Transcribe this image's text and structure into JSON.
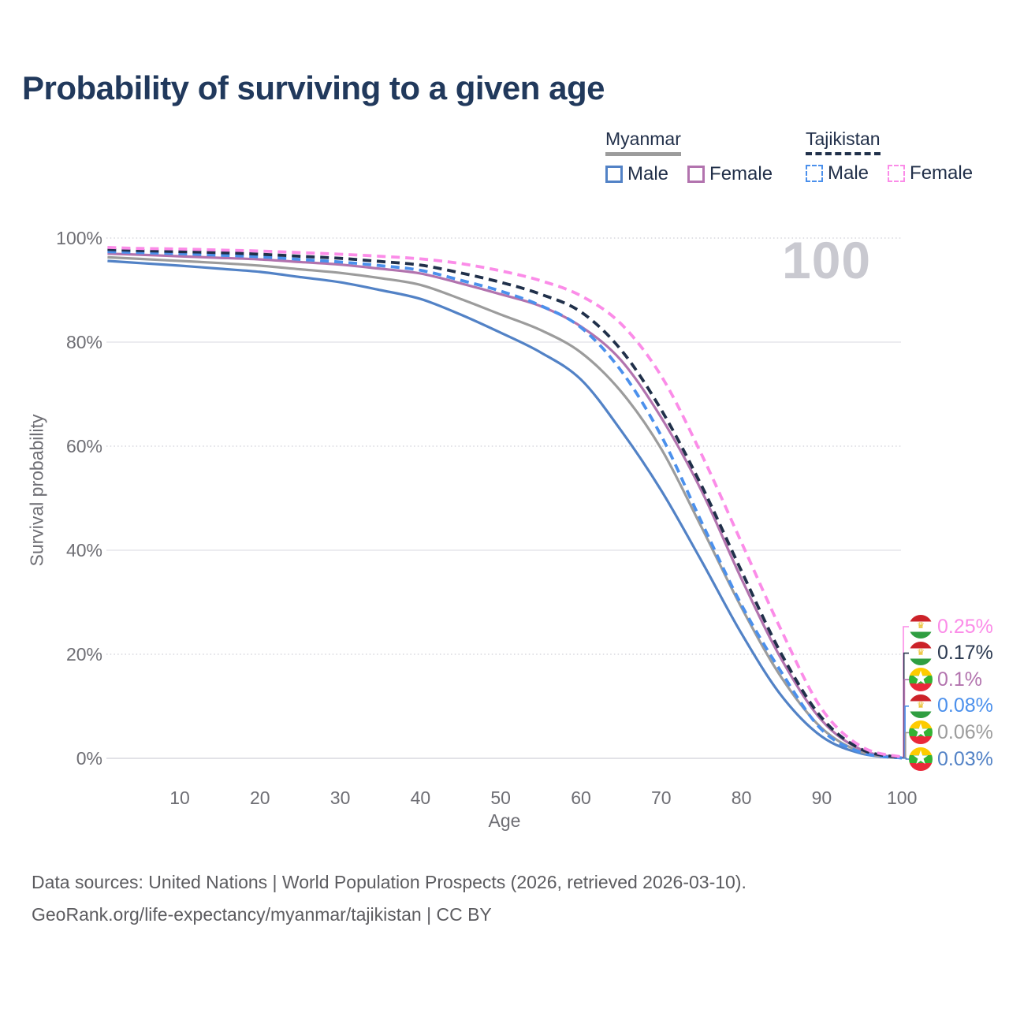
{
  "page": {
    "title": "Probability of surviving to a given age",
    "watermark_age": "100",
    "footer_line1": "Data sources: United Nations | World Population Prospects (2026, retrieved 2026-03-10).",
    "footer_line2": "GeoRank.org/life-expectancy/myanmar/tajikistan | CC BY"
  },
  "colors": {
    "title_text": "#21395c",
    "legend_text": "#22304a",
    "axis_text": "#6e6e74",
    "footer_text": "#5c5c60",
    "watermark": "#c9c9d0",
    "grid_solid": "#ececf0",
    "grid_dotted": "#d7d7de",
    "grid_baseline": "#e2e2e7",
    "myanmar_male": "#5282c6",
    "myanmar_female": "#b273ae",
    "myanmar_total": "#9c9c9c",
    "tajikistan_male": "#4b90ec",
    "tajikistan_female": "#fb8ce8",
    "tajikistan_total": "#20304a"
  },
  "legend": {
    "groups": [
      {
        "header": "Myanmar",
        "underline_style": "solid",
        "items": [
          {
            "label": "Male",
            "color": "#5282c6",
            "dashed": false
          },
          {
            "label": "Female",
            "color": "#b273ae",
            "dashed": false
          }
        ]
      },
      {
        "header": "Tajikistan",
        "underline_style": "dashed",
        "items": [
          {
            "label": "Male",
            "color": "#4b90ec",
            "dashed": true
          },
          {
            "label": "Female",
            "color": "#fb8ce8",
            "dashed": true
          }
        ]
      }
    ]
  },
  "chart_data": {
    "type": "line",
    "title": "Probability of surviving to a given age",
    "xlabel": "Age",
    "ylabel": "Survival probability",
    "xlim": [
      1,
      100
    ],
    "ylim": [
      0,
      100
    ],
    "x_ticks": [
      "10",
      "20",
      "30",
      "40",
      "50",
      "60",
      "70",
      "80",
      "90",
      "100"
    ],
    "y_tick_labels": [
      "0%",
      "20%",
      "40%",
      "60%",
      "80%",
      "100%"
    ],
    "y_tick_values": [
      0,
      20,
      40,
      60,
      80,
      100
    ],
    "grid": "horizontal only; solid lines at 0/40/80, dotted minor lines at 20/60/100",
    "legend_position": "top-right",
    "series": [
      {
        "name": "Myanmar Male",
        "country": "Myanmar",
        "style": "solid",
        "color": "#5282c6",
        "end_value_pct": 0.03,
        "points": [
          [
            1,
            95.6
          ],
          [
            5,
            95.2
          ],
          [
            10,
            94.7
          ],
          [
            15,
            94.1
          ],
          [
            20,
            93.5
          ],
          [
            25,
            92.5
          ],
          [
            30,
            91.5
          ],
          [
            35,
            90.0
          ],
          [
            40,
            88.3
          ],
          [
            45,
            85.3
          ],
          [
            50,
            81.8
          ],
          [
            55,
            78.0
          ],
          [
            60,
            72.8
          ],
          [
            65,
            63.0
          ],
          [
            70,
            51.5
          ],
          [
            75,
            38.0
          ],
          [
            80,
            24.0
          ],
          [
            85,
            12.0
          ],
          [
            90,
            4.2
          ],
          [
            95,
            0.9
          ],
          [
            100,
            0.03
          ]
        ]
      },
      {
        "name": "Myanmar Total",
        "country": "Myanmar",
        "style": "solid",
        "color": "#9c9c9c",
        "end_value_pct": 0.06,
        "points": [
          [
            1,
            96.3
          ],
          [
            5,
            96.0
          ],
          [
            10,
            95.6
          ],
          [
            15,
            95.2
          ],
          [
            20,
            94.7
          ],
          [
            25,
            94.0
          ],
          [
            30,
            93.3
          ],
          [
            35,
            92.3
          ],
          [
            40,
            91.0
          ],
          [
            45,
            88.3
          ],
          [
            50,
            85.3
          ],
          [
            55,
            82.3
          ],
          [
            60,
            78.0
          ],
          [
            65,
            70.5
          ],
          [
            70,
            59.5
          ],
          [
            75,
            44.5
          ],
          [
            80,
            29.0
          ],
          [
            85,
            15.5
          ],
          [
            90,
            5.8
          ],
          [
            95,
            1.2
          ],
          [
            100,
            0.06
          ]
        ]
      },
      {
        "name": "Myanmar Female",
        "country": "Myanmar",
        "style": "solid",
        "color": "#b273ae",
        "end_value_pct": 0.1,
        "points": [
          [
            1,
            97.0
          ],
          [
            5,
            96.8
          ],
          [
            10,
            96.5
          ],
          [
            15,
            96.2
          ],
          [
            20,
            95.9
          ],
          [
            25,
            95.4
          ],
          [
            30,
            94.9
          ],
          [
            35,
            94.1
          ],
          [
            40,
            93.2
          ],
          [
            45,
            91.3
          ],
          [
            50,
            89.2
          ],
          [
            55,
            86.9
          ],
          [
            60,
            83.0
          ],
          [
            65,
            76.5
          ],
          [
            70,
            65.5
          ],
          [
            75,
            51.5
          ],
          [
            80,
            34.5
          ],
          [
            85,
            19.0
          ],
          [
            90,
            7.3
          ],
          [
            95,
            1.6
          ],
          [
            100,
            0.1
          ]
        ]
      },
      {
        "name": "Tajikistan Male",
        "country": "Tajikistan",
        "style": "dashed",
        "color": "#4b90ec",
        "end_value_pct": 0.08,
        "points": [
          [
            1,
            97.4
          ],
          [
            5,
            97.2
          ],
          [
            10,
            97.0
          ],
          [
            15,
            96.7
          ],
          [
            20,
            96.4
          ],
          [
            25,
            95.9
          ],
          [
            30,
            95.4
          ],
          [
            35,
            94.7
          ],
          [
            40,
            93.8
          ],
          [
            45,
            91.9
          ],
          [
            50,
            89.8
          ],
          [
            55,
            87.0
          ],
          [
            60,
            82.8
          ],
          [
            65,
            74.5
          ],
          [
            70,
            62.0
          ],
          [
            75,
            45.5
          ],
          [
            80,
            29.5
          ],
          [
            85,
            16.5
          ],
          [
            90,
            5.5
          ],
          [
            95,
            1.1
          ],
          [
            100,
            0.08
          ]
        ]
      },
      {
        "name": "Tajikistan Total",
        "country": "Tajikistan",
        "style": "dashed",
        "color": "#20304a",
        "end_value_pct": 0.17,
        "points": [
          [
            1,
            97.8
          ],
          [
            5,
            97.6
          ],
          [
            10,
            97.4
          ],
          [
            15,
            97.2
          ],
          [
            20,
            96.9
          ],
          [
            25,
            96.5
          ],
          [
            30,
            96.1
          ],
          [
            35,
            95.5
          ],
          [
            40,
            94.8
          ],
          [
            45,
            93.3
          ],
          [
            50,
            91.5
          ],
          [
            55,
            89.2
          ],
          [
            60,
            85.8
          ],
          [
            65,
            78.5
          ],
          [
            70,
            67.0
          ],
          [
            75,
            52.5
          ],
          [
            80,
            36.0
          ],
          [
            85,
            20.0
          ],
          [
            90,
            7.8
          ],
          [
            95,
            1.7
          ],
          [
            100,
            0.17
          ]
        ]
      },
      {
        "name": "Tajikistan Female",
        "country": "Tajikistan",
        "style": "dashed",
        "color": "#fb8ce8",
        "end_value_pct": 0.25,
        "points": [
          [
            1,
            98.2
          ],
          [
            5,
            98.0
          ],
          [
            10,
            97.9
          ],
          [
            15,
            97.7
          ],
          [
            20,
            97.5
          ],
          [
            25,
            97.2
          ],
          [
            30,
            96.9
          ],
          [
            35,
            96.5
          ],
          [
            40,
            96.0
          ],
          [
            45,
            95.1
          ],
          [
            50,
            93.7
          ],
          [
            55,
            91.8
          ],
          [
            60,
            88.9
          ],
          [
            65,
            83.5
          ],
          [
            70,
            73.5
          ],
          [
            75,
            58.5
          ],
          [
            80,
            41.5
          ],
          [
            85,
            24.5
          ],
          [
            90,
            9.5
          ],
          [
            95,
            2.2
          ],
          [
            100,
            0.25
          ]
        ]
      }
    ]
  },
  "end_labels": [
    {
      "value": "0.25%",
      "flag": "Tajikistan",
      "series": "Tajikistan Female",
      "color": "#fb8ce8"
    },
    {
      "value": "0.17%",
      "flag": "Tajikistan",
      "series": "Tajikistan Total",
      "color": "#2b3950"
    },
    {
      "value": "0.1%",
      "flag": "Myanmar",
      "series": "Myanmar Female",
      "color": "#b273ae"
    },
    {
      "value": "0.08%",
      "flag": "Tajikistan",
      "series": "Tajikistan Male",
      "color": "#4b90ec"
    },
    {
      "value": "0.06%",
      "flag": "Myanmar",
      "series": "Myanmar Total",
      "color": "#9c9c9c"
    },
    {
      "value": "0.03%",
      "flag": "Myanmar",
      "series": "Myanmar Male",
      "color": "#5282c6"
    }
  ],
  "flag_colors": {
    "tajikistan": {
      "top": "#cc2229",
      "middle": "#ffffff",
      "bottom": "#2f9e41",
      "crown": "#e8b70e"
    },
    "myanmar": {
      "top": "#fecb00",
      "middle": "#34b233",
      "bottom": "#ea2839",
      "star": "#ffffff"
    }
  }
}
